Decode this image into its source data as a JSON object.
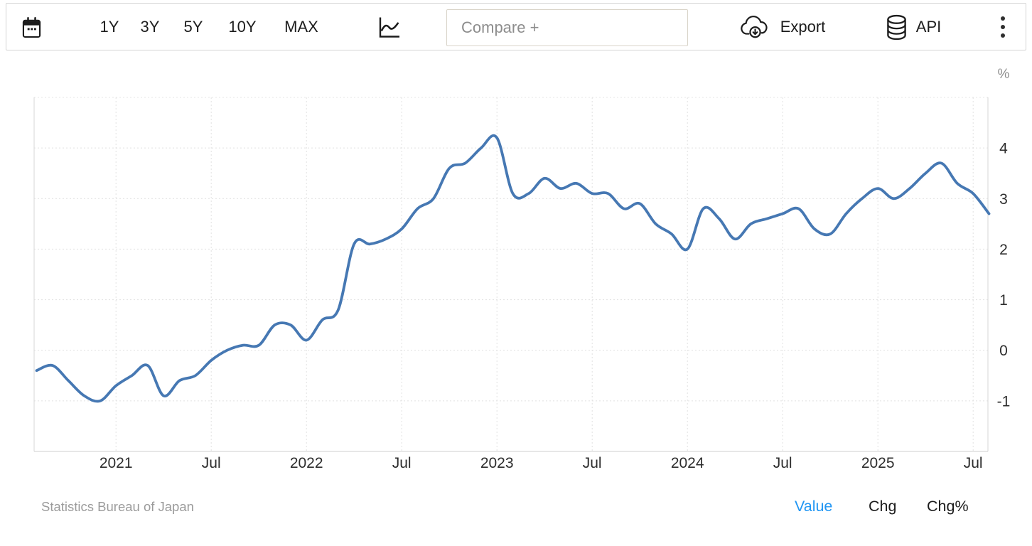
{
  "toolbar": {
    "ranges": [
      {
        "label": "1Y",
        "active": false
      },
      {
        "label": "3Y",
        "active": false
      },
      {
        "label": "5Y",
        "active": true
      },
      {
        "label": "10Y",
        "active": false
      },
      {
        "label": "MAX",
        "active": false
      }
    ],
    "compare_placeholder": "Compare +",
    "export_label": "Export",
    "api_label": "API",
    "icons": {
      "left": "calendar-icon",
      "chart_type": "line-chart-icon",
      "export": "cloud-download-icon",
      "api": "database-icon",
      "menu": "kebab-menu-icon"
    }
  },
  "chart_data": {
    "type": "line",
    "unit": "%",
    "line_color": "#4678b3",
    "grid": "dotted",
    "legend": "none",
    "ylim": [
      -2,
      5
    ],
    "y_ticks": [
      4,
      3,
      2,
      1,
      0,
      -1
    ],
    "x_ticks": [
      {
        "month": "2021-01",
        "label": "2021"
      },
      {
        "month": "2021-07",
        "label": "Jul"
      },
      {
        "month": "2022-01",
        "label": "2022"
      },
      {
        "month": "2022-07",
        "label": "Jul"
      },
      {
        "month": "2023-01",
        "label": "2023"
      },
      {
        "month": "2023-07",
        "label": "Jul"
      },
      {
        "month": "2024-01",
        "label": "2024"
      },
      {
        "month": "2024-07",
        "label": "Jul"
      },
      {
        "month": "2025-01",
        "label": "2025"
      },
      {
        "month": "2025-07",
        "label": "Jul"
      }
    ],
    "x": [
      "2020-08",
      "2020-09",
      "2020-10",
      "2020-11",
      "2020-12",
      "2021-01",
      "2021-02",
      "2021-03",
      "2021-04",
      "2021-05",
      "2021-06",
      "2021-07",
      "2021-08",
      "2021-09",
      "2021-10",
      "2021-11",
      "2021-12",
      "2022-01",
      "2022-02",
      "2022-03",
      "2022-04",
      "2022-05",
      "2022-06",
      "2022-07",
      "2022-08",
      "2022-09",
      "2022-10",
      "2022-11",
      "2022-12",
      "2023-01",
      "2023-02",
      "2023-03",
      "2023-04",
      "2023-05",
      "2023-06",
      "2023-07",
      "2023-08",
      "2023-09",
      "2023-10",
      "2023-11",
      "2023-12",
      "2024-01",
      "2024-02",
      "2024-03",
      "2024-04",
      "2024-05",
      "2024-06",
      "2024-07",
      "2024-08",
      "2024-09",
      "2024-10",
      "2024-11",
      "2024-12",
      "2025-01",
      "2025-02",
      "2025-03",
      "2025-04",
      "2025-05",
      "2025-06",
      "2025-07",
      "2025-08"
    ],
    "values": [
      -0.4,
      -0.3,
      -0.6,
      -0.9,
      -1.0,
      -0.7,
      -0.5,
      -0.3,
      -0.9,
      -0.6,
      -0.5,
      -0.2,
      0.0,
      0.1,
      0.1,
      0.5,
      0.5,
      0.2,
      0.6,
      0.8,
      2.1,
      2.1,
      2.2,
      2.4,
      2.8,
      3.0,
      3.6,
      3.7,
      4.0,
      4.2,
      3.1,
      3.1,
      3.4,
      3.2,
      3.3,
      3.1,
      3.1,
      2.8,
      2.9,
      2.5,
      2.3,
      2.0,
      2.8,
      2.6,
      2.2,
      2.5,
      2.6,
      2.7,
      2.8,
      2.4,
      2.3,
      2.7,
      3.0,
      3.2,
      3.0,
      3.2,
      3.5,
      3.7,
      3.3,
      3.1,
      2.7
    ]
  },
  "footer": {
    "source": "Statistics Bureau of Japan",
    "modes": [
      {
        "label": "Value",
        "active": true
      },
      {
        "label": "Chg",
        "active": false
      },
      {
        "label": "Chg%",
        "active": false
      }
    ],
    "active_color": "#2196f3"
  }
}
